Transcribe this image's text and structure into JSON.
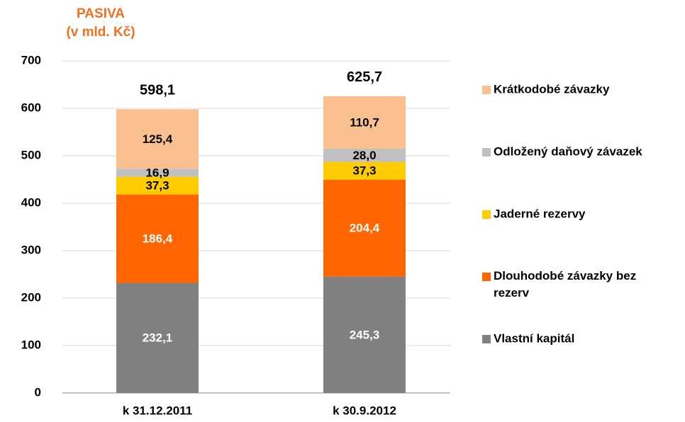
{
  "chart_data": {
    "type": "stacked_bar",
    "title": "PASIVA",
    "subtitle": "(v mld. Kč)",
    "categories": [
      "k 31.12.2011",
      "k 30.9.2012"
    ],
    "series": [
      {
        "name": "Vlastní kapitál",
        "color": "#808080",
        "label_color": "#ffffff",
        "values": [
          232.1,
          245.3
        ],
        "value_labels": [
          "232,1",
          "245,3"
        ]
      },
      {
        "name": "Dlouhodobé závazky bez rezerv",
        "color": "#ff6600",
        "label_color": "#ffffff",
        "values": [
          186.4,
          204.4
        ],
        "value_labels": [
          "186,4",
          "204,4"
        ]
      },
      {
        "name": "Jaderné rezervy",
        "color": "#ffcc00",
        "label_color": "#000000",
        "values": [
          37.3,
          37.3
        ],
        "value_labels": [
          "37,3",
          "37,3"
        ]
      },
      {
        "name": "Odložený daňový závazek",
        "color": "#c0c0c0",
        "label_color": "#000000",
        "values": [
          16.9,
          28.0
        ],
        "value_labels": [
          "16,9",
          "28,0"
        ]
      },
      {
        "name": "Krátkodobé závazky",
        "color": "#fac090",
        "label_color": "#000000",
        "values": [
          125.4,
          110.7
        ],
        "value_labels": [
          "125,4",
          "110,7"
        ]
      }
    ],
    "totals": [
      598.1,
      625.7
    ],
    "total_labels": [
      "598,1",
      "625,7"
    ],
    "ylim": [
      0,
      700
    ],
    "yticks": [
      0,
      100,
      200,
      300,
      400,
      500,
      600,
      700
    ],
    "grid": true,
    "legend": "right"
  }
}
